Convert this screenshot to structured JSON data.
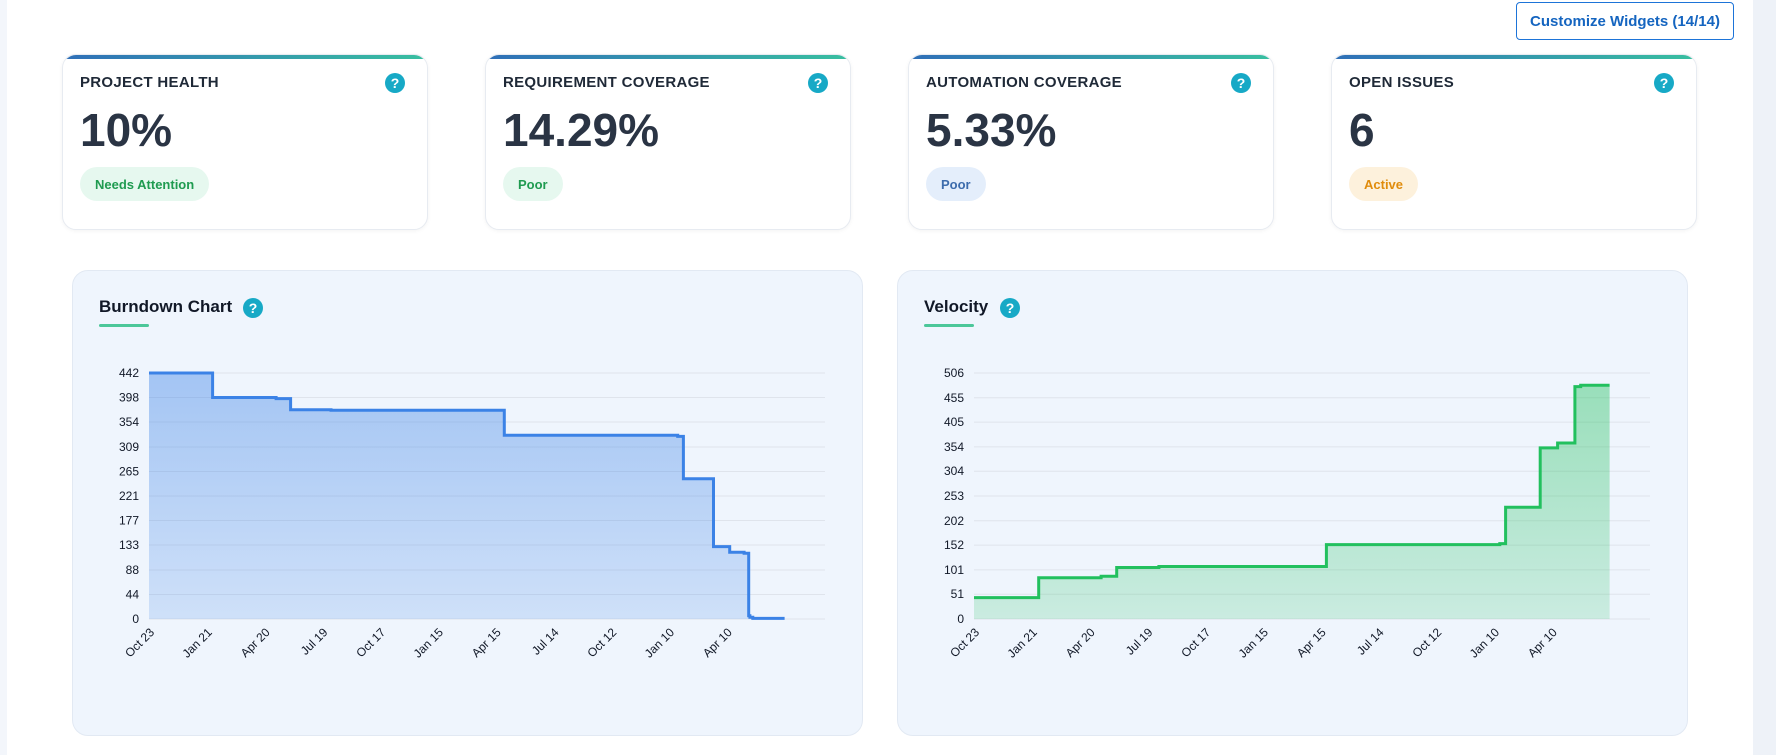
{
  "toolbar": {
    "customize_label": "Customize Widgets (14/14)"
  },
  "kpis": [
    {
      "title": "PROJECT HEALTH",
      "value": "10%",
      "badge": "Needs Attention",
      "badge_color": "#1f9b50"
    },
    {
      "title": "REQUIREMENT COVERAGE",
      "value": "14.29%",
      "badge": "Poor",
      "badge_color": "#1f9b50"
    },
    {
      "title": "AUTOMATION COVERAGE",
      "value": "5.33%",
      "badge": "Poor",
      "badge_color": "#3d6cac"
    },
    {
      "title": "OPEN ISSUES",
      "value": "6",
      "badge": "Active",
      "badge_color": "#e08c0c"
    }
  ],
  "help_glyph": "?",
  "colors": {
    "accent": "#1d74d8",
    "help": "#17a9c6",
    "burndown": "#3b82e6",
    "velocity": "#22c05e"
  },
  "chart_data": [
    {
      "type": "area",
      "title": "Burndown Chart",
      "x_ticks": [
        "Oct 23",
        "Jan 21",
        "Apr 20",
        "Jul 19",
        "Oct 17",
        "Jan 15",
        "Apr 15",
        "Jul 14",
        "Oct 12",
        "Jan 10",
        "Apr 10"
      ],
      "y_ticks": [
        0,
        44,
        88,
        133,
        177,
        221,
        265,
        309,
        354,
        398,
        442
      ],
      "ylim": [
        0,
        442
      ],
      "x_range": [
        0,
        11.7
      ],
      "grid": true,
      "step": true,
      "series": [
        {
          "x": [
            0,
            1.1,
            1.1,
            2.2,
            2.2,
            2.45,
            2.45,
            3.15,
            3.15,
            6.15,
            6.15,
            9.15,
            9.15,
            9.25,
            9.25,
            9.77,
            9.77,
            10.05,
            10.05,
            10.3,
            10.3,
            10.38,
            10.38,
            10.4,
            10.4,
            10.45,
            10.45,
            11.0
          ],
          "y": [
            442,
            442,
            398,
            398,
            396,
            396,
            376,
            376,
            375,
            375,
            330,
            330,
            328,
            328,
            252,
            252,
            130,
            130,
            120,
            120,
            118,
            118,
            6,
            6,
            3,
            3,
            1,
            1
          ]
        }
      ]
    },
    {
      "type": "area",
      "title": "Velocity",
      "x_ticks": [
        "Oct 23",
        "Jan 21",
        "Apr 20",
        "Jul 19",
        "Oct 17",
        "Jan 15",
        "Apr 15",
        "Jul 14",
        "Oct 12",
        "Jan 10",
        "Apr 10"
      ],
      "y_ticks": [
        0,
        51,
        101,
        152,
        202,
        253,
        304,
        354,
        405,
        455,
        506
      ],
      "ylim": [
        0,
        506
      ],
      "x_range": [
        0,
        11.7
      ],
      "grid": true,
      "step": true,
      "series": [
        {
          "x": [
            0,
            1.12,
            1.12,
            2.2,
            2.2,
            2.47,
            2.47,
            3.2,
            3.2,
            6.1,
            6.1,
            9.1,
            9.1,
            9.2,
            9.2,
            9.8,
            9.8,
            10.1,
            10.1,
            10.4,
            10.4,
            10.5,
            10.5,
            11.0
          ],
          "y": [
            44,
            44,
            85,
            85,
            88,
            88,
            106,
            106,
            108,
            108,
            153,
            153,
            155,
            155,
            230,
            230,
            352,
            352,
            362,
            362,
            478,
            478,
            481,
            481
          ]
        }
      ]
    }
  ]
}
